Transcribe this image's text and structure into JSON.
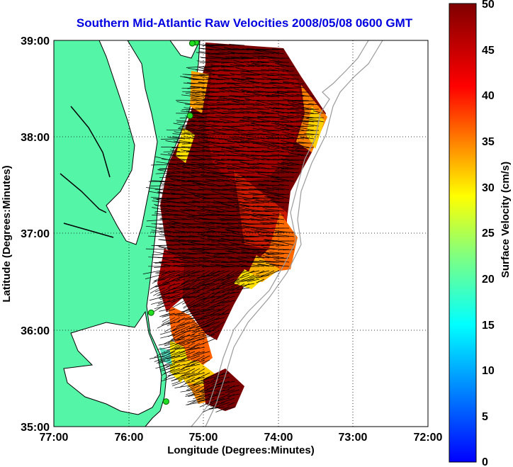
{
  "title": "Southern Mid-Atlantic Raw Velocities 2008/05/08 0600 GMT",
  "x_axis": {
    "label": "Longitude (Degrees:Minutes)",
    "ticks": [
      "77:00",
      "76:00",
      "75:00",
      "74:00",
      "73:00",
      "72:00"
    ],
    "range": [
      -77,
      -72
    ]
  },
  "y_axis": {
    "label": "Latitude (Degrees:Minutes)",
    "ticks": [
      "39:00",
      "38:00",
      "37:00",
      "36:00",
      "35:00"
    ],
    "range": [
      35,
      39
    ]
  },
  "colorbar": {
    "label": "Surface Velocity (cm/s)",
    "ticks": [
      "50",
      "45",
      "40",
      "35",
      "30",
      "25",
      "20",
      "15",
      "10",
      "5",
      "0"
    ],
    "range": [
      0,
      50
    ],
    "colormap": "jet"
  },
  "colors": {
    "land": "#55f5a8",
    "coast_line": "#000000",
    "bathymetry": "#9a9a9a",
    "grid": "#000000",
    "title": "#0000e0",
    "station_marker": "#22dd22"
  },
  "grid": "dotted",
  "stations": [
    {
      "lon": -75.1,
      "lat": 38.98
    },
    {
      "lon": -75.15,
      "lat": 38.97
    },
    {
      "lon": -75.18,
      "lat": 38.22
    },
    {
      "lon": -75.7,
      "lat": 36.18
    },
    {
      "lon": -75.5,
      "lat": 35.26
    }
  ]
}
